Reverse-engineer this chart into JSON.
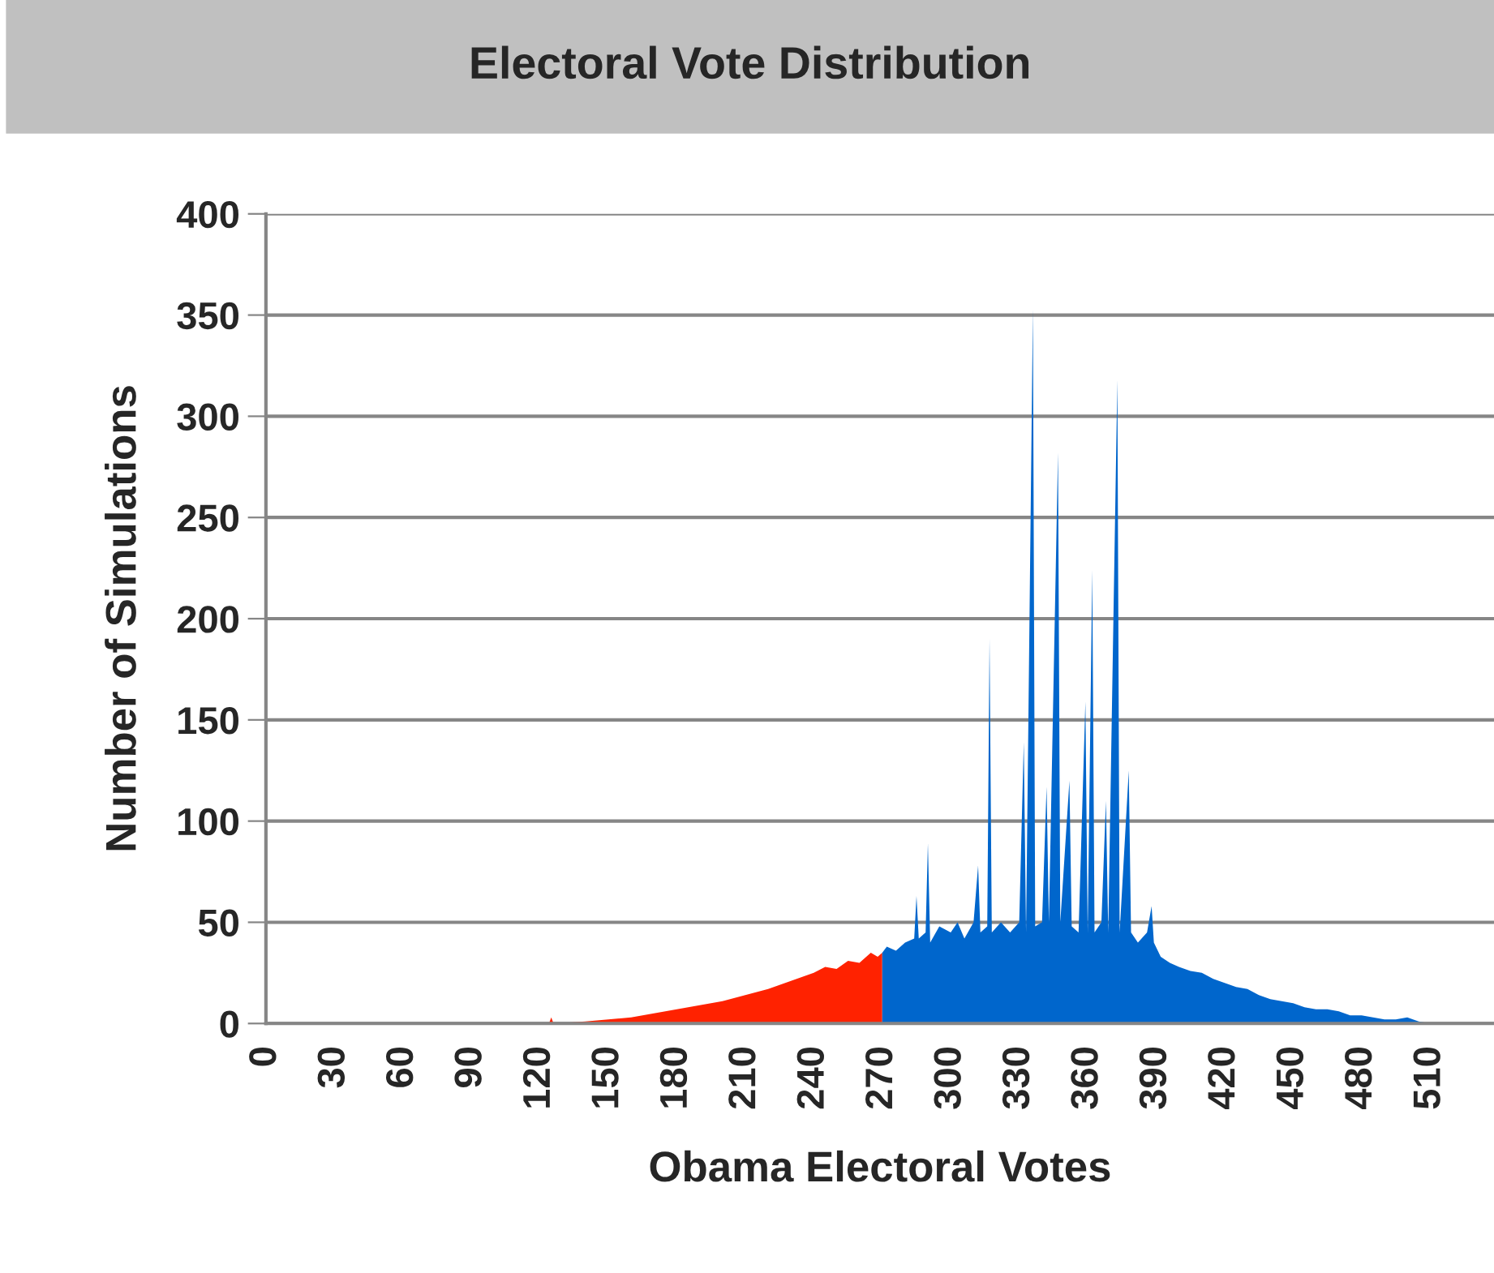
{
  "chart_data": {
    "type": "area",
    "title": "Electoral Vote Distribution",
    "xlabel": "Obama Electoral Votes",
    "ylabel": "Number of Simulations",
    "series": [
      {
        "color": "#ff2200",
        "x": [
          0,
          120,
          124,
          125,
          126,
          140,
          150,
          160,
          170,
          180,
          190,
          200,
          210,
          220,
          230,
          240,
          245,
          250,
          255,
          260,
          265,
          268,
          270
        ],
        "values": [
          0,
          0,
          0,
          3,
          0,
          1,
          2,
          3,
          5,
          7,
          9,
          11,
          14,
          17,
          21,
          25,
          28,
          27,
          31,
          30,
          35,
          33,
          35
        ]
      },
      {
        "color": "#0066cc",
        "x": [
          270,
          272,
          276,
          280,
          284,
          285,
          286,
          289,
          290,
          291,
          295,
          300,
          303,
          306,
          310,
          312,
          313,
          316,
          317,
          318,
          322,
          326,
          330,
          332,
          333,
          336,
          337,
          340,
          342,
          343,
          347,
          348,
          352,
          353,
          356,
          359,
          360,
          362,
          363,
          366,
          368,
          369,
          373,
          374,
          378,
          379,
          382,
          386,
          388,
          389,
          392,
          396,
          400,
          405,
          410,
          415,
          420,
          425,
          430,
          435,
          440,
          445,
          450,
          455,
          460,
          465,
          470,
          475,
          480,
          485,
          490,
          495,
          500,
          505,
          510,
          538
        ],
        "values": [
          35,
          38,
          36,
          40,
          42,
          63,
          42,
          45,
          89,
          40,
          48,
          45,
          50,
          42,
          50,
          78,
          45,
          48,
          190,
          45,
          50,
          45,
          50,
          139,
          45,
          353,
          48,
          50,
          117,
          50,
          282,
          50,
          120,
          48,
          45,
          159,
          45,
          224,
          45,
          50,
          110,
          45,
          318,
          45,
          125,
          45,
          40,
          45,
          58,
          40,
          33,
          30,
          28,
          26,
          25,
          22,
          20,
          18,
          17,
          14,
          12,
          11,
          10,
          8,
          7,
          7,
          6,
          4,
          4,
          3,
          2,
          2,
          3,
          1,
          0,
          0
        ]
      }
    ],
    "xlim": [
      0,
      538
    ],
    "xticks": [
      0,
      30,
      60,
      90,
      120,
      150,
      180,
      210,
      240,
      270,
      300,
      330,
      360,
      390,
      420,
      450,
      480,
      510
    ],
    "ylim": [
      0,
      400
    ],
    "yticks": [
      0,
      50,
      100,
      150,
      200,
      250,
      300,
      350,
      400
    ],
    "grid": "y"
  }
}
